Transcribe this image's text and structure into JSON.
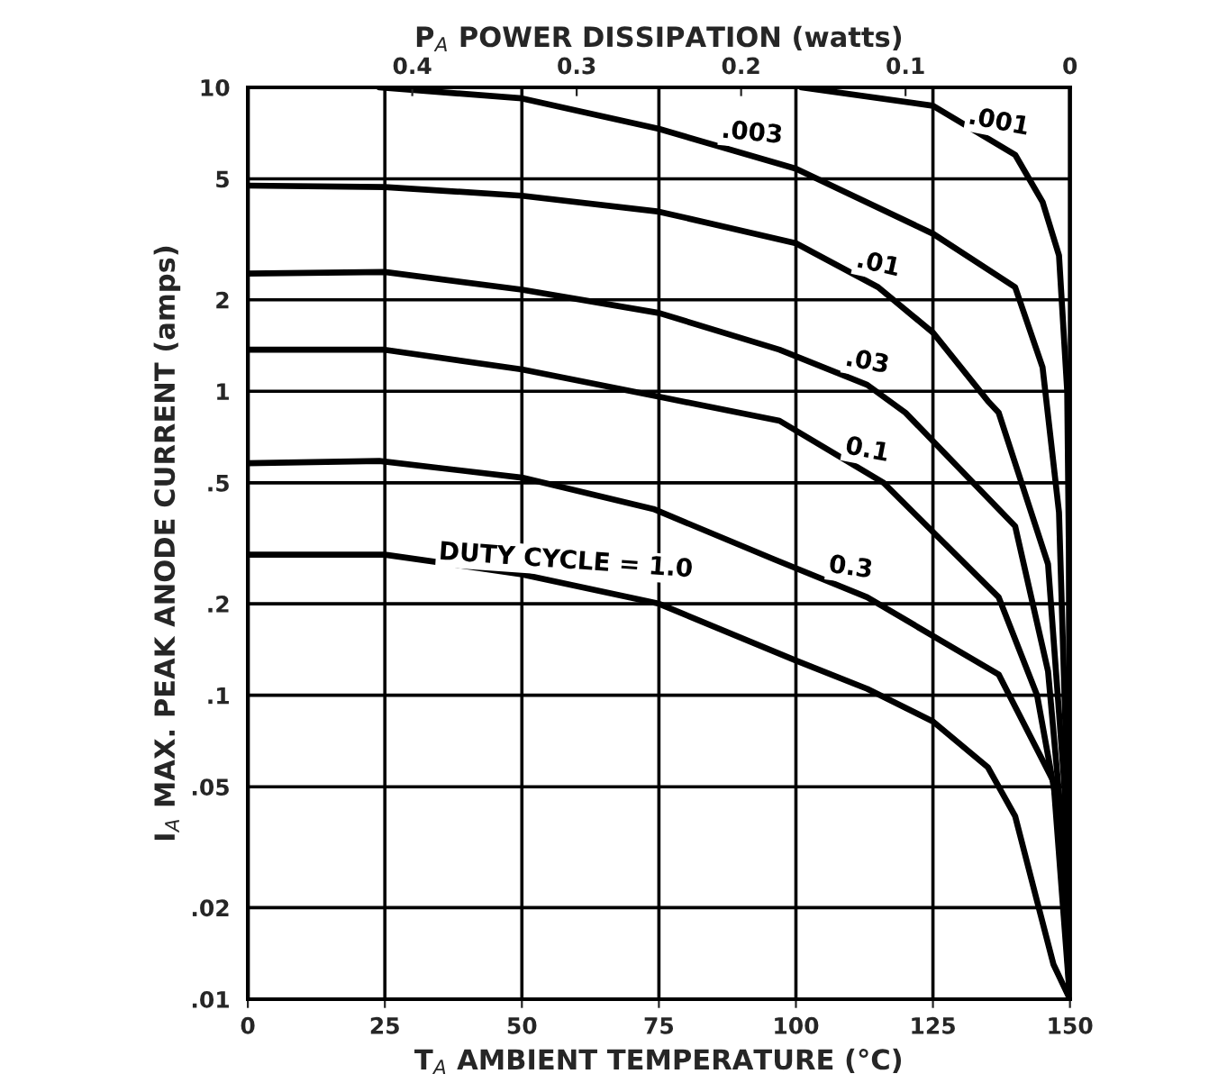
{
  "chart_data": {
    "type": "line",
    "x2label": "P$_{A}$ POWER DISSIPATION (watts)",
    "xlabel": "T$_{A}$ AMBIENT TEMPERATURE (°C)",
    "ylabel": "I$_{A}$ MAX. PEAK ANODE CURRENT (amps)",
    "log": "y",
    "grid": true,
    "legend": false,
    "xlim": [
      0,
      150
    ],
    "xticks": [
      0,
      25,
      50,
      75,
      100,
      125,
      150
    ],
    "x2lim": [
      0.5,
      0
    ],
    "x2ticks": [
      0.4,
      0.3,
      0.2,
      0.1,
      0
    ],
    "ylim": [
      0.01,
      10
    ],
    "yticks": [
      10,
      5,
      2,
      1,
      {
        "value": 0.5,
        "label": ".5"
      },
      {
        "value": 0.2,
        "label": ".2"
      },
      {
        "value": 0.1,
        "label": ".1"
      },
      {
        "value": 0.05,
        "label": ".05"
      },
      {
        "value": 0.02,
        "label": ".02"
      },
      {
        "value": 0.01,
        "label": ".01"
      }
    ],
    "series": [
      {
        "name": ".001",
        "color": "#000000",
        "x": [
          101,
          125,
          140,
          145,
          148,
          149.5,
          149.8,
          150
        ],
        "values": [
          10,
          8.7,
          6.0,
          4.2,
          2.8,
          1.0,
          0.3,
          0.01
        ]
      },
      {
        "name": ".003",
        "color": "#000000",
        "x": [
          24,
          50,
          75,
          100,
          125,
          140,
          145,
          148,
          149.5,
          150
        ],
        "values": [
          10,
          9.2,
          7.3,
          5.4,
          3.3,
          2.2,
          1.2,
          0.4,
          0.05,
          0.01
        ]
      },
      {
        "name": ".01",
        "color": "#000000",
        "x": [
          0,
          25,
          50,
          75,
          100,
          115,
          125,
          135,
          137,
          146,
          149,
          150
        ],
        "values": [
          4.75,
          4.7,
          4.4,
          3.9,
          3.07,
          2.2,
          1.56,
          0.93,
          0.85,
          0.27,
          0.05,
          0.01
        ]
      },
      {
        "name": ".03",
        "color": "#000000",
        "x": [
          0,
          25,
          50,
          75,
          97,
          113,
          120,
          140,
          146,
          149,
          150
        ],
        "values": [
          2.44,
          2.47,
          2.16,
          1.81,
          1.37,
          1.05,
          0.85,
          0.36,
          0.12,
          0.03,
          0.01
        ]
      },
      {
        "name": "0.1",
        "color": "#000000",
        "x": [
          0,
          25,
          50,
          75,
          97,
          116,
          137,
          144,
          148,
          150
        ],
        "values": [
          1.37,
          1.37,
          1.18,
          0.96,
          0.8,
          0.5,
          0.21,
          0.1,
          0.04,
          0.01
        ]
      },
      {
        "name": "0.3",
        "color": "#000000",
        "x": [
          0,
          24,
          50,
          74,
          96,
          113,
          137,
          147,
          150
        ],
        "values": [
          0.58,
          0.59,
          0.52,
          0.41,
          0.28,
          0.21,
          0.117,
          0.052,
          0.01
        ]
      },
      {
        "name": "DUTY CYCLE = 1.0",
        "color": "#000000",
        "x": [
          0,
          25,
          50,
          75,
          100,
          113,
          125,
          135,
          140,
          144,
          147,
          150
        ],
        "values": [
          0.29,
          0.29,
          0.25,
          0.2,
          0.13,
          0.105,
          0.082,
          0.058,
          0.04,
          0.021,
          0.013,
          0.01
        ]
      }
    ]
  }
}
